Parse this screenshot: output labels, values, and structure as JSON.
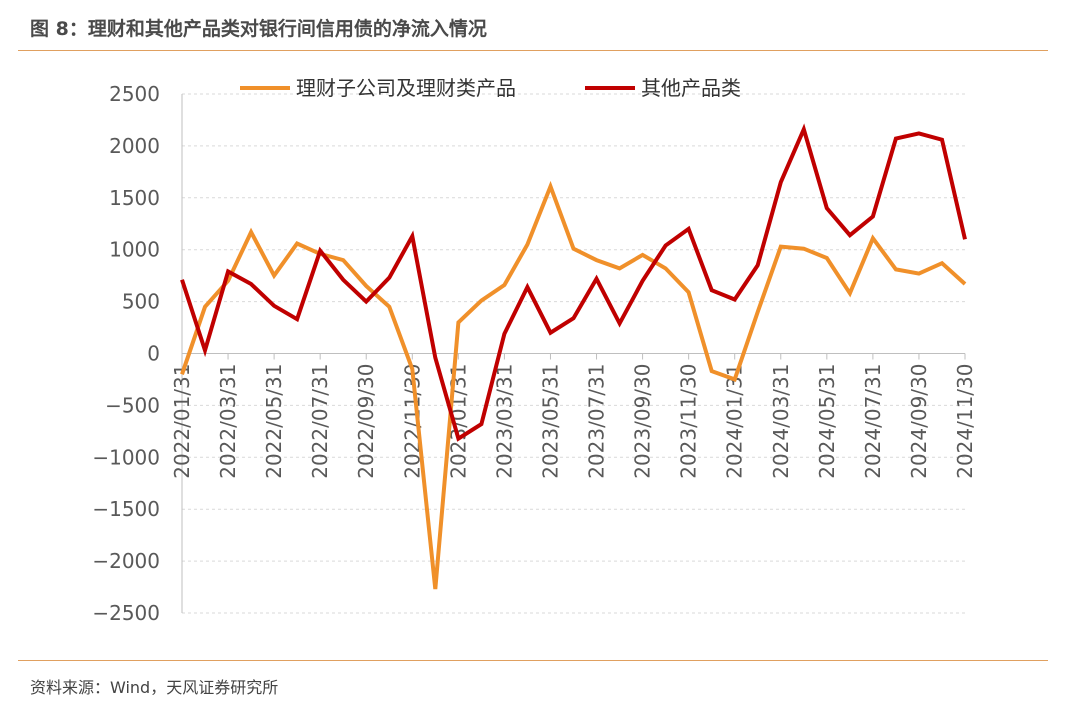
{
  "header": {
    "title": "图 8：理财和其他产品类对银行间信用债的净流入情况"
  },
  "footer": {
    "source": "资料来源：Wind，天风证券研究所"
  },
  "chart_data": {
    "type": "line",
    "title": "",
    "xlabel": "",
    "ylabel": "",
    "ylim": [
      -2500,
      2500
    ],
    "yticks": [
      2500,
      2000,
      1500,
      1000,
      500,
      0,
      -500,
      -1000,
      -1500,
      -2000,
      -2500
    ],
    "grid": true,
    "legend_position": "top",
    "x_tick_labels": [
      "2022/01/31",
      "2022/03/31",
      "2022/05/31",
      "2022/07/31",
      "2022/09/30",
      "2022/11/30",
      "2023/01/31",
      "2023/03/31",
      "2023/05/31",
      "2023/07/31",
      "2023/09/30",
      "2023/11/30",
      "2024/01/31",
      "2024/03/31",
      "2024/05/31",
      "2024/07/31",
      "2024/09/30",
      "2024/11/30"
    ],
    "x": [
      "2022/01",
      "2022/02",
      "2022/03",
      "2022/04",
      "2022/05",
      "2022/06",
      "2022/07",
      "2022/08",
      "2022/09",
      "2022/10",
      "2022/11",
      "2022/12",
      "2023/01",
      "2023/02",
      "2023/03",
      "2023/04",
      "2023/05",
      "2023/06",
      "2023/07",
      "2023/08",
      "2023/09",
      "2023/10",
      "2023/11",
      "2023/12",
      "2024/01",
      "2024/02",
      "2024/03",
      "2024/04",
      "2024/05",
      "2024/06",
      "2024/07",
      "2024/08",
      "2024/09",
      "2024/10",
      "2024/11"
    ],
    "series": [
      {
        "name": "理财子公司及理财类产品",
        "color": "#f0902a",
        "values": [
          -200,
          450,
          700,
          1170,
          750,
          1060,
          960,
          900,
          650,
          450,
          -150,
          -2270,
          300,
          510,
          660,
          1050,
          1610,
          1010,
          900,
          820,
          950,
          820,
          590,
          -170,
          -250,
          400,
          1030,
          1010,
          920,
          580,
          1110,
          810,
          770,
          870,
          670
        ]
      },
      {
        "name": "其他产品类",
        "color": "#c00000",
        "values": [
          710,
          30,
          790,
          670,
          460,
          330,
          990,
          710,
          500,
          730,
          1130,
          -40,
          -820,
          -680,
          190,
          640,
          200,
          340,
          720,
          290,
          700,
          1040,
          1200,
          610,
          520,
          850,
          1650,
          2160,
          1400,
          1140,
          1320,
          2070,
          2120,
          2060,
          1100
        ]
      }
    ]
  }
}
